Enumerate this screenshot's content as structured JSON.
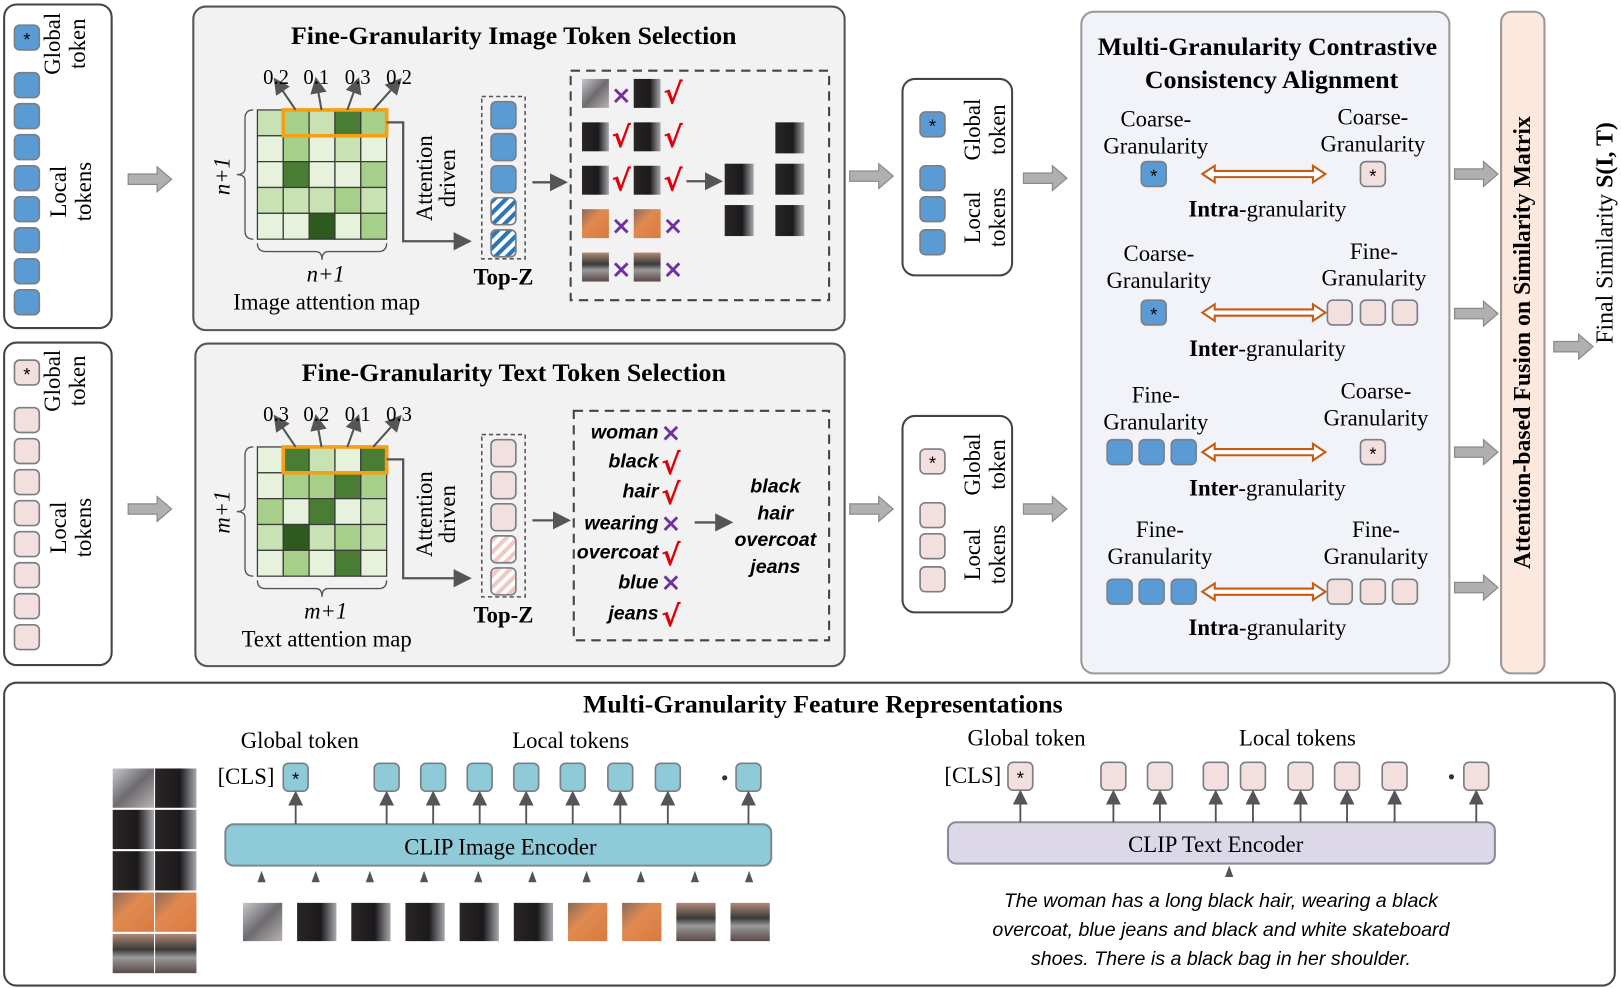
{
  "colors": {
    "image_token": "#5b9bd5",
    "text_token": "#f3e0de",
    "clip_image_token": "#8ecad8",
    "clip_image_encoder": "#8ecad8",
    "clip_text_encoder": "#ddd8e8",
    "highlight": "#f59f14",
    "align_arrow": "#c55a11",
    "check": "#e0000b",
    "cross": "#7030a0",
    "fusion_bar": "#fce8dc"
  },
  "left_panels": {
    "image": {
      "global_label": [
        "Global",
        "token"
      ],
      "local_label": [
        "Local",
        "tokens"
      ],
      "local_count": 8
    },
    "text": {
      "global_label": [
        "Global",
        "token"
      ],
      "local_label": [
        "Local",
        "tokens"
      ],
      "local_count": 8
    }
  },
  "image_selection": {
    "title": "Fine-Granularity Image Token Selection",
    "scores": [
      "0.2",
      "0.1",
      "0.3",
      "0.2"
    ],
    "grid_levels": [
      [
        1,
        2,
        1,
        3,
        2
      ],
      [
        0,
        2,
        0,
        1,
        0
      ],
      [
        0,
        3,
        0,
        0,
        2
      ],
      [
        1,
        1,
        1,
        2,
        1
      ],
      [
        0,
        0,
        4,
        0,
        2
      ]
    ],
    "row_dim": "n+1",
    "col_dim": "n+1",
    "map_label": "Image attention map",
    "attention_label": [
      "Attention",
      "driven"
    ],
    "topz_label": "Top-Z",
    "topz_tokens": [
      "selected",
      "selected",
      "selected",
      "dropped",
      "dropped"
    ],
    "patch_marks": [
      [
        "cross",
        "check"
      ],
      [
        "check",
        "check"
      ],
      [
        "check",
        "check"
      ],
      [
        "cross",
        "cross"
      ],
      [
        "cross",
        "cross"
      ]
    ]
  },
  "text_selection": {
    "title": "Fine-Granularity Text Token Selection",
    "scores": [
      "0.3",
      "0.2",
      "0.1",
      "0.3"
    ],
    "grid_levels": [
      [
        0,
        3,
        1,
        0,
        3
      ],
      [
        0,
        2,
        2,
        3,
        2
      ],
      [
        2,
        0,
        3,
        0,
        1
      ],
      [
        1,
        4,
        1,
        2,
        1
      ],
      [
        0,
        2,
        0,
        3,
        0
      ]
    ],
    "row_dim": "m+1",
    "col_dim": "m+1",
    "map_label": "Text attention map",
    "attention_label": [
      "Attention",
      "driven"
    ],
    "topz_label": "Top-Z",
    "topz_tokens": [
      "selected",
      "selected",
      "selected",
      "dropped",
      "dropped"
    ],
    "words": [
      {
        "text": "woman",
        "mark": "cross"
      },
      {
        "text": "black",
        "mark": "check"
      },
      {
        "text": "hair",
        "mark": "check"
      },
      {
        "text": "wearing",
        "mark": "cross"
      },
      {
        "text": "overcoat",
        "mark": "check"
      },
      {
        "text": "blue",
        "mark": "cross"
      },
      {
        "text": "jeans",
        "mark": "check"
      }
    ],
    "selected_words": [
      "black",
      "hair",
      "overcoat",
      "jeans"
    ]
  },
  "mid_panels": {
    "image": {
      "global_label": [
        "Global",
        "token"
      ],
      "local_label": [
        "Local",
        "tokens"
      ]
    },
    "text": {
      "global_label": [
        "Global",
        "token"
      ],
      "local_label": [
        "Local",
        "tokens"
      ]
    }
  },
  "alignment": {
    "title": [
      "Multi-Granularity Contrastive",
      "Consistency Alignment"
    ],
    "pairs": [
      {
        "left": [
          "Coarse-",
          "Granularity"
        ],
        "right": [
          "Coarse-",
          "Granularity"
        ],
        "kind_bold": "Intra",
        "kind_rest": "-granularity"
      },
      {
        "left": [
          "Coarse-",
          "Granularity"
        ],
        "right": [
          "Fine-",
          "Granularity"
        ],
        "kind_bold": "Inter",
        "kind_rest": "-granularity"
      },
      {
        "left": [
          "Fine-",
          "Granularity"
        ],
        "right": [
          "Coarse-",
          "Granularity"
        ],
        "kind_bold": "Inter",
        "kind_rest": "-granularity"
      },
      {
        "left": [
          "Fine-",
          "Granularity"
        ],
        "right": [
          "Fine-",
          "Granularity"
        ],
        "kind_bold": "Intra",
        "kind_rest": "-granularity"
      }
    ]
  },
  "fusion": {
    "label": "Attention-based Fusion on Similarity Matrix"
  },
  "final": {
    "label": "Final Similarity ",
    "formula": "S(I, T)"
  },
  "features": {
    "title": "Multi-Granularity Feature Representations",
    "image": {
      "global_label": "Global token",
      "local_label": "Local tokens",
      "cls": "[CLS]",
      "encoder": "CLIP Image Encoder"
    },
    "text": {
      "global_label": "Global token",
      "local_label": "Local tokens",
      "cls": "[CLS]",
      "encoder": "CLIP Text Encoder",
      "caption": [
        "The woman has a long black hair, wearing a black",
        "overcoat, blue jeans and black and white skateboard",
        "shoes. There is a black bag in her shoulder."
      ]
    }
  }
}
